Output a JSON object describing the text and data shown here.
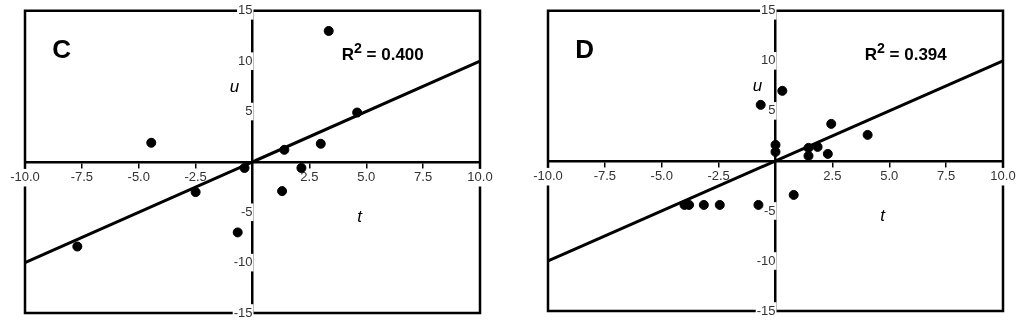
{
  "chart_data": [
    {
      "type": "scatter",
      "title": "C",
      "xlabel": "t",
      "ylabel": "u",
      "annotations": [
        "R$^{2}$ = 0.400"
      ],
      "xlim": [
        -10,
        10
      ],
      "ylim": [
        -15,
        15
      ],
      "xticks": [
        {
          "value": -10,
          "label": "-10.0"
        },
        {
          "value": -7.5,
          "label": "-7.5"
        },
        {
          "value": -5,
          "label": "-5.0"
        },
        {
          "value": -2.5,
          "label": "-2.5"
        },
        {
          "value": 2.5,
          "label": "2.5"
        },
        {
          "value": 5,
          "label": "5.0"
        },
        {
          "value": 7.5,
          "label": "7.5"
        },
        {
          "value": 10,
          "label": "10.0"
        }
      ],
      "yticks": [
        -15,
        -10,
        -5,
        5,
        10,
        15
      ],
      "series": [
        {
          "type": "scatter",
          "marker": "circle",
          "color": "#000000",
          "x": [
            -7.7,
            -4.45,
            -2.5,
            -0.35,
            -0.65,
            1.4,
            1.3,
            2.15,
            3.0,
            3.35,
            4.6
          ],
          "values": [
            -8.4,
            1.9,
            -3.0,
            -0.6,
            -7.0,
            1.2,
            -2.9,
            -0.6,
            1.8,
            13.0,
            4.9
          ]
        },
        {
          "type": "line",
          "color": "#000000",
          "x": [
            -10,
            10
          ],
          "values": [
            -10,
            10
          ]
        }
      ]
    },
    {
      "type": "scatter",
      "title": "D",
      "xlabel": "t",
      "ylabel": "u",
      "annotations": [
        "R$^{2}$ = 0.394"
      ],
      "xlim": [
        -10,
        10
      ],
      "ylim": [
        -15,
        15
      ],
      "xticks": [
        {
          "value": -10,
          "label": "-10.0"
        },
        {
          "value": -7.5,
          "label": "-7.5"
        },
        {
          "value": -5,
          "label": "-5.0"
        },
        {
          "value": -2.5,
          "label": "-2.5"
        },
        {
          "value": 2.5,
          "label": "2.5"
        },
        {
          "value": 5,
          "label": "5.0"
        },
        {
          "value": 7.5,
          "label": "7.5"
        },
        {
          "value": 10,
          "label": "10.0"
        }
      ],
      "yticks": [
        -15,
        -10,
        -5,
        5,
        10,
        15
      ],
      "series": [
        {
          "type": "scatter",
          "marker": "circle",
          "color": "#000000",
          "x": [
            -4.0,
            -3.8,
            -3.15,
            -2.45,
            -0.75,
            -0.65,
            0,
            0,
            0.3,
            0.8,
            1.45,
            1.45,
            1.85,
            2.3,
            2.45,
            4.05
          ],
          "values": [
            -4.4,
            -4.4,
            -4.4,
            -4.4,
            -4.4,
            5.6,
            1.6,
            0.9,
            7.0,
            -3.4,
            1.3,
            0.5,
            1.4,
            0.7,
            3.7,
            2.6
          ]
        },
        {
          "type": "line",
          "color": "#000000",
          "x": [
            -10,
            10
          ],
          "values": [
            -10,
            10
          ]
        }
      ]
    }
  ]
}
